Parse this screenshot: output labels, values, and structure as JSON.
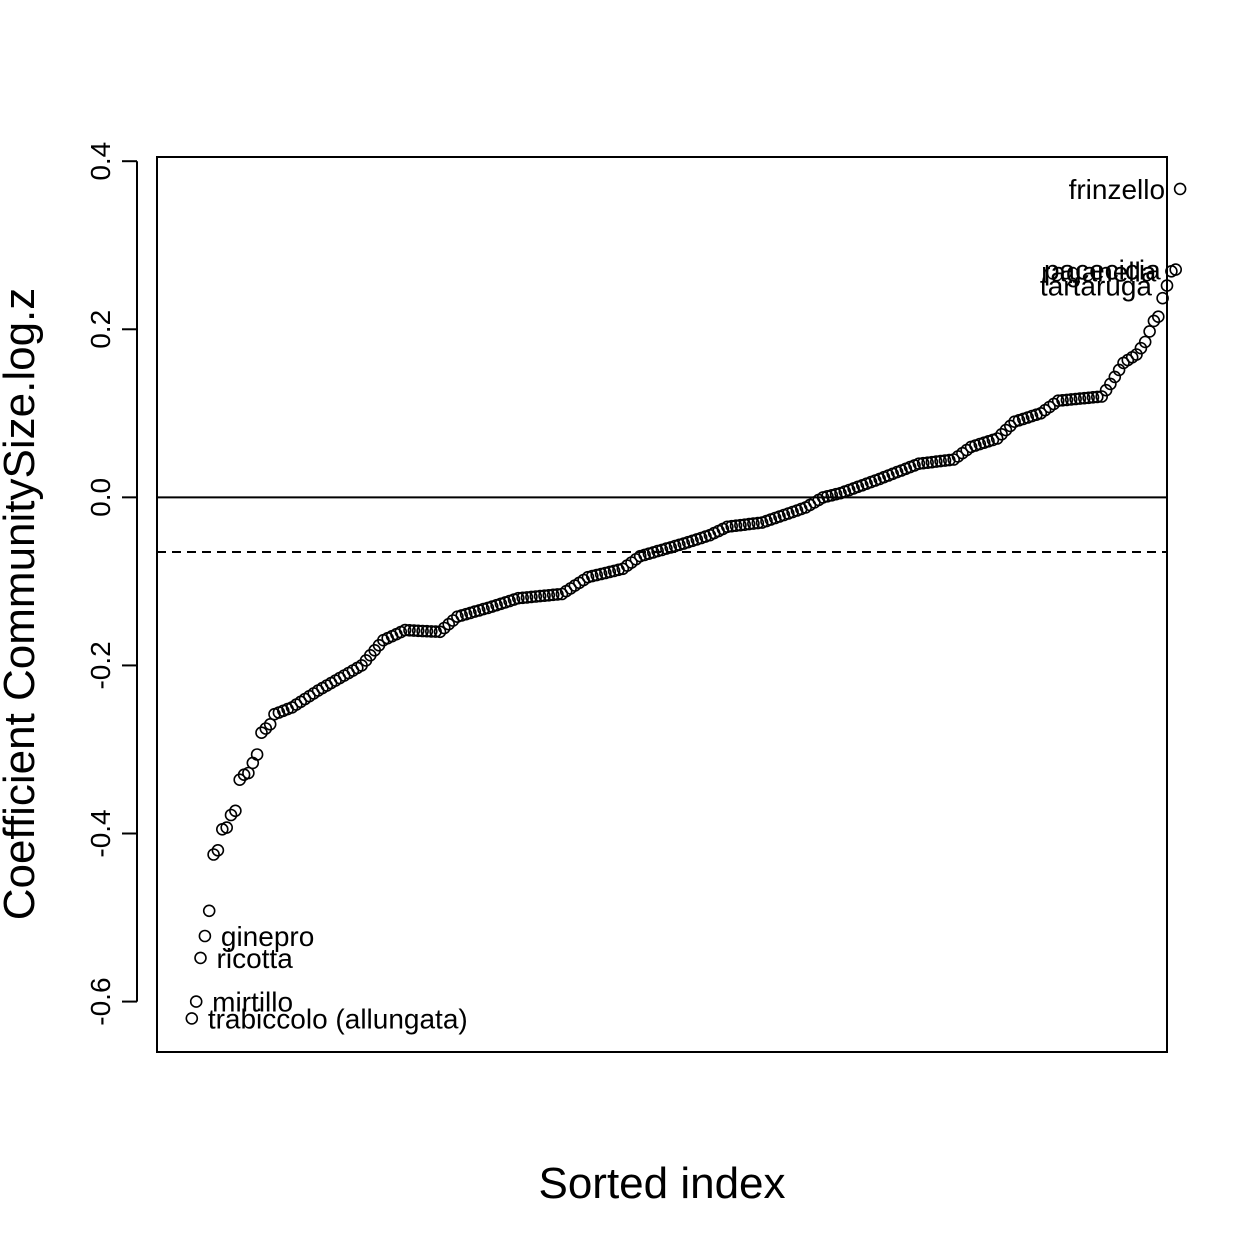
{
  "chart_data": {
    "type": "scatter",
    "title": "",
    "xlabel": "Sorted index",
    "ylabel": "Coefficient CommunitySize.log.z",
    "ylim": [
      -0.66,
      0.405
    ],
    "xlim": [
      -7,
      225
    ],
    "yticks": [
      "-0.6",
      "-0.4",
      "-0.2",
      "0.0",
      "0.2",
      "0.4"
    ],
    "ytick_values": [
      -0.6,
      -0.4,
      -0.2,
      0.0,
      0.2,
      0.4
    ],
    "grid": false,
    "reference_lines": [
      {
        "name": "zero",
        "y": 0.0,
        "style": "solid"
      },
      {
        "name": "mean",
        "y": -0.065,
        "style": "dashed"
      }
    ],
    "anchors": [
      [
        1,
        -0.62
      ],
      [
        2,
        -0.6
      ],
      [
        3,
        -0.548
      ],
      [
        4,
        -0.522
      ],
      [
        5,
        -0.492
      ],
      [
        6,
        -0.425
      ],
      [
        7,
        -0.42
      ],
      [
        8,
        -0.395
      ],
      [
        9,
        -0.393
      ],
      [
        10,
        -0.378
      ],
      [
        11,
        -0.373
      ],
      [
        12,
        -0.336
      ],
      [
        13,
        -0.33
      ],
      [
        14,
        -0.328
      ],
      [
        15,
        -0.316
      ],
      [
        16,
        -0.306
      ],
      [
        17,
        -0.28
      ],
      [
        18,
        -0.275
      ],
      [
        19,
        -0.27
      ],
      [
        20,
        -0.258
      ],
      [
        24,
        -0.25
      ],
      [
        30,
        -0.23
      ],
      [
        40,
        -0.2
      ],
      [
        45,
        -0.17
      ],
      [
        50,
        -0.158
      ],
      [
        58,
        -0.16
      ],
      [
        62,
        -0.142
      ],
      [
        70,
        -0.13
      ],
      [
        76,
        -0.12
      ],
      [
        86,
        -0.115
      ],
      [
        92,
        -0.095
      ],
      [
        100,
        -0.085
      ],
      [
        104,
        -0.07
      ],
      [
        114,
        -0.055
      ],
      [
        120,
        -0.045
      ],
      [
        124,
        -0.035
      ],
      [
        132,
        -0.03
      ],
      [
        142,
        -0.012
      ],
      [
        146,
        0.0
      ],
      [
        150,
        0.005
      ],
      [
        158,
        0.02
      ],
      [
        168,
        0.04
      ],
      [
        176,
        0.045
      ],
      [
        180,
        0.06
      ],
      [
        186,
        0.07
      ],
      [
        190,
        0.09
      ],
      [
        196,
        0.1
      ],
      [
        200,
        0.115
      ],
      [
        210,
        0.12
      ],
      [
        212,
        0.135
      ],
      [
        215,
        0.16
      ],
      [
        218,
        0.17
      ],
      [
        220,
        0.185
      ],
      [
        222,
        0.21
      ],
      [
        223,
        0.215
      ],
      [
        224,
        0.237
      ],
      [
        225,
        0.252
      ],
      [
        226,
        0.269
      ],
      [
        227,
        0.271
      ],
      [
        228,
        0.367
      ]
    ],
    "n_points": 228,
    "labeled_points": [
      {
        "label": "frinzello",
        "x": 228,
        "y": 0.367,
        "side": "left"
      },
      {
        "label": "pacecicia",
        "x": 227,
        "y": 0.271,
        "side": "left"
      },
      {
        "label": "raganella",
        "x": 226,
        "y": 0.269,
        "side": "left"
      },
      {
        "label": "tartaruga",
        "x": 225,
        "y": 0.252,
        "side": "left"
      },
      {
        "label": "ginepro",
        "x": 4,
        "y": -0.522,
        "side": "right"
      },
      {
        "label": "ricotta",
        "x": 3,
        "y": -0.548,
        "side": "right"
      },
      {
        "label": "mirtillo",
        "x": 2,
        "y": -0.6,
        "side": "right"
      },
      {
        "label": "trabiccolo (allungata)",
        "x": 1,
        "y": -0.62,
        "side": "right"
      }
    ]
  }
}
